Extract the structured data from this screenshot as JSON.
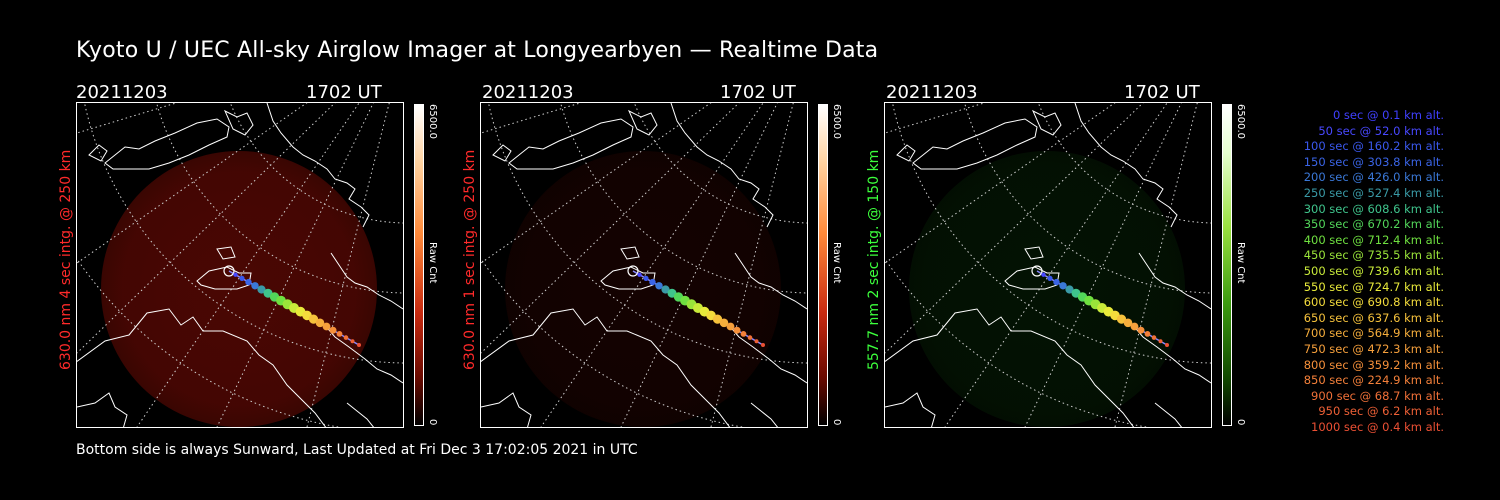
{
  "title": "Kyoto U / UEC All-sky Airglow Imager at Longyearbyen — Realtime Data",
  "footer": "Bottom side is always Sunward, Last Updated at Fri Dec  3 17:02:05 2021 in UTC",
  "colors": {
    "red_panel_label": "#ff2a2a",
    "green_panel_label": "#3cff3c",
    "background": "#000000"
  },
  "panels": [
    {
      "date": "20211203",
      "time": "1702 UT",
      "ylabel": "630.0 nm 4 sec intg. @ 250 km",
      "cbar_max": "6500.0",
      "cbar_min": "0",
      "cbar_label": "Raw Cnt",
      "tone": "red",
      "glow_level": 0.45
    },
    {
      "date": "20211203",
      "time": "1702 UT",
      "ylabel": "630.0 nm 1 sec intg. @ 250 km",
      "cbar_max": "6500.0",
      "cbar_min": "0",
      "cbar_label": "Raw Cnt",
      "tone": "red",
      "glow_level": 0.12
    },
    {
      "date": "20211203",
      "time": "1702 UT",
      "ylabel": "557.7 nm 2 sec intg. @ 150 km",
      "cbar_max": "6500.0",
      "cbar_min": "0",
      "cbar_label": "Raw Cnt",
      "tone": "green",
      "glow_level": 0.15
    }
  ],
  "chart_data": {
    "type": "scatter",
    "title": "Kyoto U / UEC All-sky Airglow Imager at Longyearbyen — Realtime Data",
    "x_label": "sec",
    "y_label": "km alt.",
    "trajectory_legend": [
      {
        "text": "0 sec @   0.1 km alt.",
        "sec": 0,
        "alt_km": 0.1,
        "color": "#4040ff"
      },
      {
        "text": "50 sec @  52.0 km alt.",
        "sec": 50,
        "alt_km": 52.0,
        "color": "#4848ff"
      },
      {
        "text": "100 sec @ 160.2 km alt.",
        "sec": 100,
        "alt_km": 160.2,
        "color": "#3a58ee"
      },
      {
        "text": "150 sec @ 303.8 km alt.",
        "sec": 150,
        "alt_km": 303.8,
        "color": "#3a64e6"
      },
      {
        "text": "200 sec @ 426.0 km alt.",
        "sec": 200,
        "alt_km": 426.0,
        "color": "#3a78d8"
      },
      {
        "text": "250 sec @ 527.4 km alt.",
        "sec": 250,
        "alt_km": 527.4,
        "color": "#3a9aa6"
      },
      {
        "text": "300 sec @ 608.6 km alt.",
        "sec": 300,
        "alt_km": 608.6,
        "color": "#3fc48c"
      },
      {
        "text": "350 sec @ 670.2 km alt.",
        "sec": 350,
        "alt_km": 670.2,
        "color": "#52d65a"
      },
      {
        "text": "400 sec @ 712.4 km alt.",
        "sec": 400,
        "alt_km": 712.4,
        "color": "#6fe040"
      },
      {
        "text": "450 sec @ 735.5 km alt.",
        "sec": 450,
        "alt_km": 735.5,
        "color": "#9ae43a"
      },
      {
        "text": "500 sec @ 739.6 km alt.",
        "sec": 500,
        "alt_km": 739.6,
        "color": "#c8ea3a"
      },
      {
        "text": "550 sec @ 724.7 km alt.",
        "sec": 550,
        "alt_km": 724.7,
        "color": "#e8ea3a"
      },
      {
        "text": "600 sec @ 690.8 km alt.",
        "sec": 600,
        "alt_km": 690.8,
        "color": "#f4dc3c"
      },
      {
        "text": "650 sec @ 637.6 km alt.",
        "sec": 650,
        "alt_km": 637.6,
        "color": "#f6c23c"
      },
      {
        "text": "700 sec @ 564.9 km alt.",
        "sec": 700,
        "alt_km": 564.9,
        "color": "#f6ae3c"
      },
      {
        "text": "750 sec @ 472.3 km alt.",
        "sec": 750,
        "alt_km": 472.3,
        "color": "#f6a03c"
      },
      {
        "text": "800 sec @ 359.2 km alt.",
        "sec": 800,
        "alt_km": 359.2,
        "color": "#f6903a"
      },
      {
        "text": "850 sec @ 224.9 km alt.",
        "sec": 850,
        "alt_km": 224.9,
        "color": "#f4803a"
      },
      {
        "text": "900 sec @  68.7 km alt.",
        "sec": 900,
        "alt_km": 68.7,
        "color": "#f07038"
      },
      {
        "text": "950 sec @   6.2 km alt.",
        "sec": 950,
        "alt_km": 6.2,
        "color": "#ee6036"
      },
      {
        "text": "1000 sec @   0.4 km alt.",
        "sec": 1000,
        "alt_km": 0.4,
        "color": "#ec5034"
      }
    ]
  }
}
